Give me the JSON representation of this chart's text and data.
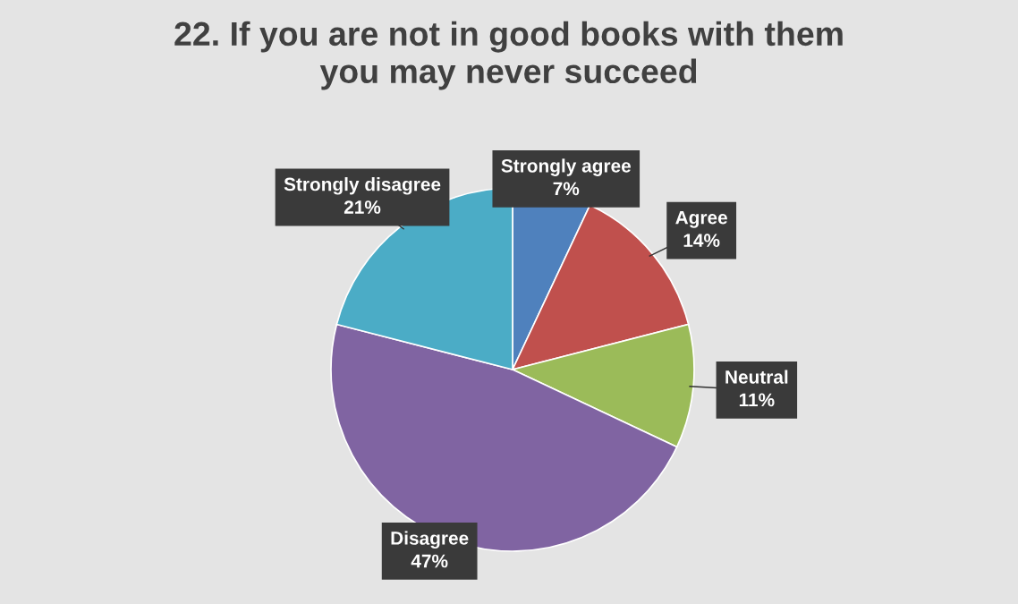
{
  "chart_data": {
    "type": "pie",
    "title": "22. If you are not in good books with them\nyou may never succeed",
    "categories": [
      "Strongly agree",
      "Agree",
      "Neutral",
      "Disagree",
      "Strongly disagree"
    ],
    "values": [
      7,
      14,
      11,
      47,
      21
    ],
    "value_labels": [
      "7%",
      "14%",
      "11%",
      "47%",
      "21%"
    ],
    "colors": [
      "#4f81bd",
      "#c0504d",
      "#9bbb59",
      "#8064a2",
      "#4bacc6"
    ],
    "legend": false
  }
}
